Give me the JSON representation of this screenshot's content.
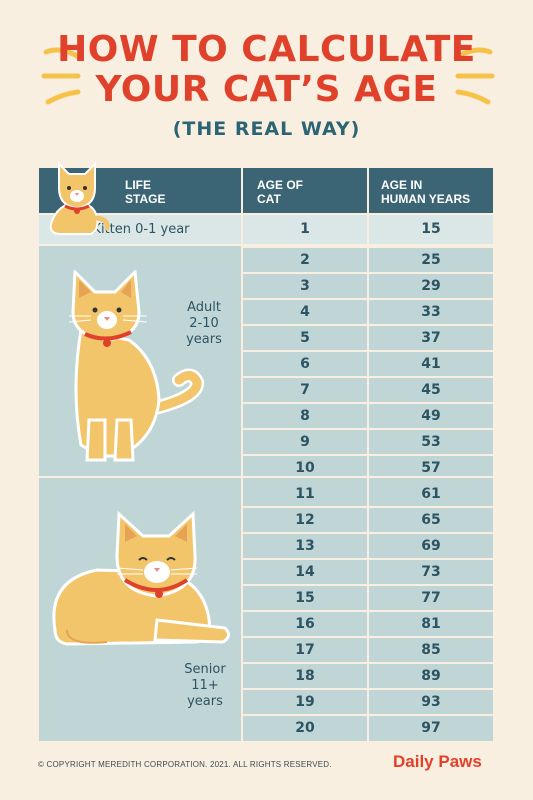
{
  "title": {
    "line1": "HOW TO CALCULATE",
    "line2": "YOUR CAT’S AGE",
    "subtitle": "(THE REAL WAY)"
  },
  "colors": {
    "accent": "#e0412b",
    "header_bg": "#3b6574",
    "table_bg": "#c0d5d6",
    "kitten_bg": "#dae7e6",
    "cat_fur": "#f3c56b",
    "background": "#f8efe0"
  },
  "table": {
    "headers": {
      "stage": "LIFE\nSTAGE",
      "cat_age": "AGE OF\nCAT",
      "human_age": "AGE IN\nHUMAN YEARS"
    },
    "stages": {
      "kitten": "Kitten 0-1 year",
      "adult": "Adult\n2-10\nyears",
      "senior": "Senior\n11+\nyears"
    },
    "rows": [
      {
        "cat": "1",
        "human": "15"
      },
      {
        "cat": "2",
        "human": "25"
      },
      {
        "cat": "3",
        "human": "29"
      },
      {
        "cat": "4",
        "human": "33"
      },
      {
        "cat": "5",
        "human": "37"
      },
      {
        "cat": "6",
        "human": "41"
      },
      {
        "cat": "7",
        "human": "45"
      },
      {
        "cat": "8",
        "human": "49"
      },
      {
        "cat": "9",
        "human": "53"
      },
      {
        "cat": "10",
        "human": "57"
      },
      {
        "cat": "11",
        "human": "61"
      },
      {
        "cat": "12",
        "human": "65"
      },
      {
        "cat": "13",
        "human": "69"
      },
      {
        "cat": "14",
        "human": "73"
      },
      {
        "cat": "15",
        "human": "77"
      },
      {
        "cat": "16",
        "human": "81"
      },
      {
        "cat": "17",
        "human": "85"
      },
      {
        "cat": "18",
        "human": "89"
      },
      {
        "cat": "19",
        "human": "93"
      },
      {
        "cat": "20",
        "human": "97"
      }
    ]
  },
  "illustrations": [
    "kitten-illustration",
    "adult-cat-illustration",
    "senior-cat-illustration"
  ],
  "footer": {
    "copyright": "© COPYRIGHT MEREDITH CORPORATION. 2021. ALL RIGHTS RESERVED.",
    "brand": "Daily Paws"
  }
}
